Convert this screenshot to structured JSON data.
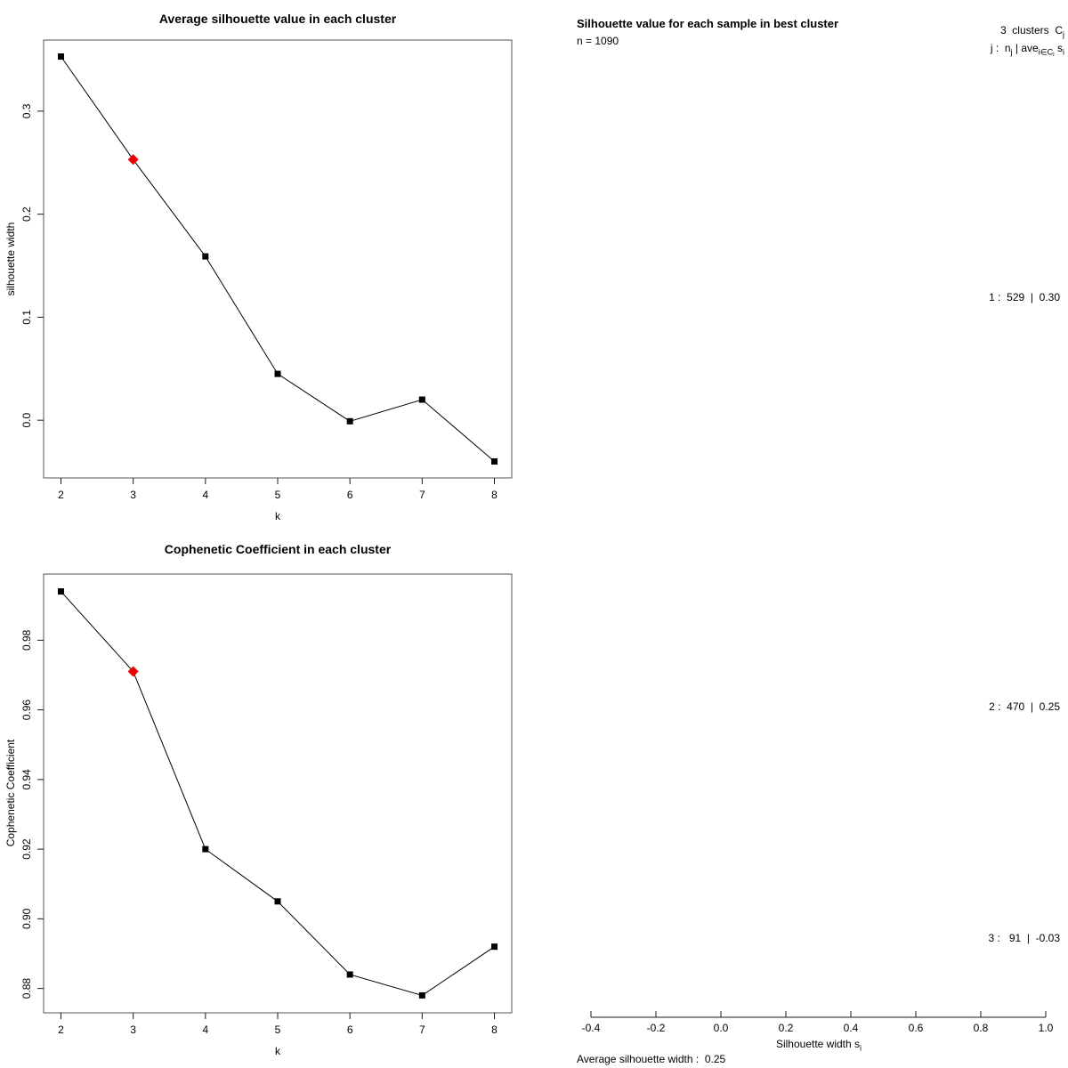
{
  "chart_data": [
    {
      "id": "avg-silhouette-by-k",
      "type": "line",
      "title": "Average silhouette value in each cluster",
      "xlabel": "k",
      "ylabel": "silhouette width",
      "x": [
        2,
        3,
        4,
        5,
        6,
        7,
        8
      ],
      "y": [
        0.353,
        0.253,
        0.159,
        0.045,
        -0.001,
        0.02,
        -0.04
      ],
      "highlight_x": 3,
      "highlight_color": "#ee0000",
      "line_color": "#000000",
      "point_color": "#000000",
      "xticks": [
        2,
        3,
        4,
        5,
        6,
        7,
        8
      ],
      "xtick_labels": [
        "2",
        "3",
        "4",
        "5",
        "6",
        "7",
        "8"
      ],
      "yticks": [
        0.0,
        0.1,
        0.2,
        0.3
      ],
      "ytick_labels": [
        "0.0",
        "0.1",
        "0.2",
        "0.3"
      ],
      "xlim": [
        1.76,
        8.24
      ],
      "ylim": [
        -0.056,
        0.369
      ],
      "grid": false,
      "legend": "none"
    },
    {
      "id": "cophenetic-by-k",
      "type": "line",
      "title": "Cophenetic Coefficient in each cluster",
      "xlabel": "k",
      "ylabel": "Cophenetic Coefficient",
      "x": [
        2,
        3,
        4,
        5,
        6,
        7,
        8
      ],
      "y": [
        0.994,
        0.971,
        0.92,
        0.905,
        0.884,
        0.878,
        0.892
      ],
      "highlight_x": 3,
      "highlight_color": "#ee0000",
      "line_color": "#000000",
      "point_color": "#000000",
      "xticks": [
        2,
        3,
        4,
        5,
        6,
        7,
        8
      ],
      "xtick_labels": [
        "2",
        "3",
        "4",
        "5",
        "6",
        "7",
        "8"
      ],
      "yticks": [
        0.88,
        0.9,
        0.92,
        0.94,
        0.96,
        0.98
      ],
      "ytick_labels": [
        "0.88",
        "0.90",
        "0.92",
        "0.94",
        "0.96",
        "0.98"
      ],
      "xlim": [
        1.76,
        8.24
      ],
      "ylim": [
        0.873,
        0.999
      ],
      "grid": false,
      "legend": "none"
    },
    {
      "id": "silhouette-samples",
      "type": "silhouette",
      "title": "Silhouette value for each sample in best cluster",
      "n_label": "n = 1090",
      "legend_line1_text": "3  clusters  C",
      "legend_line1_sub": "j",
      "legend_line2_p1": "j :  n",
      "legend_line2_s1": "j",
      "legend_line2_p2": " | ave",
      "legend_line2_s2": "i∈Cⱼ",
      "legend_line2_p3": " s",
      "legend_line2_s3": "i",
      "clusters": [
        {
          "row": "1 :  529  |  0.30",
          "cluster": 1,
          "size": 529,
          "avg_silhouette": 0.3
        },
        {
          "row": "2 :  470  |  0.25",
          "cluster": 2,
          "size": 470,
          "avg_silhouette": 0.25
        },
        {
          "row": "3 :   91  |  -0.03",
          "cluster": 3,
          "size": 91,
          "avg_silhouette": -0.03
        }
      ],
      "xticks": [
        -0.4,
        -0.2,
        0.0,
        0.2,
        0.4,
        0.6,
        0.8,
        1.0
      ],
      "xtick_labels": [
        "-0.4",
        "-0.2",
        "0.0",
        "0.2",
        "0.4",
        "0.6",
        "0.8",
        "1.0"
      ],
      "xlim": [
        -0.4,
        1.0
      ],
      "xlabel_text": "Silhouette width s",
      "xlabel_sub": "i",
      "avg_label": "Average silhouette width :  0.25",
      "n": 1090
    }
  ]
}
